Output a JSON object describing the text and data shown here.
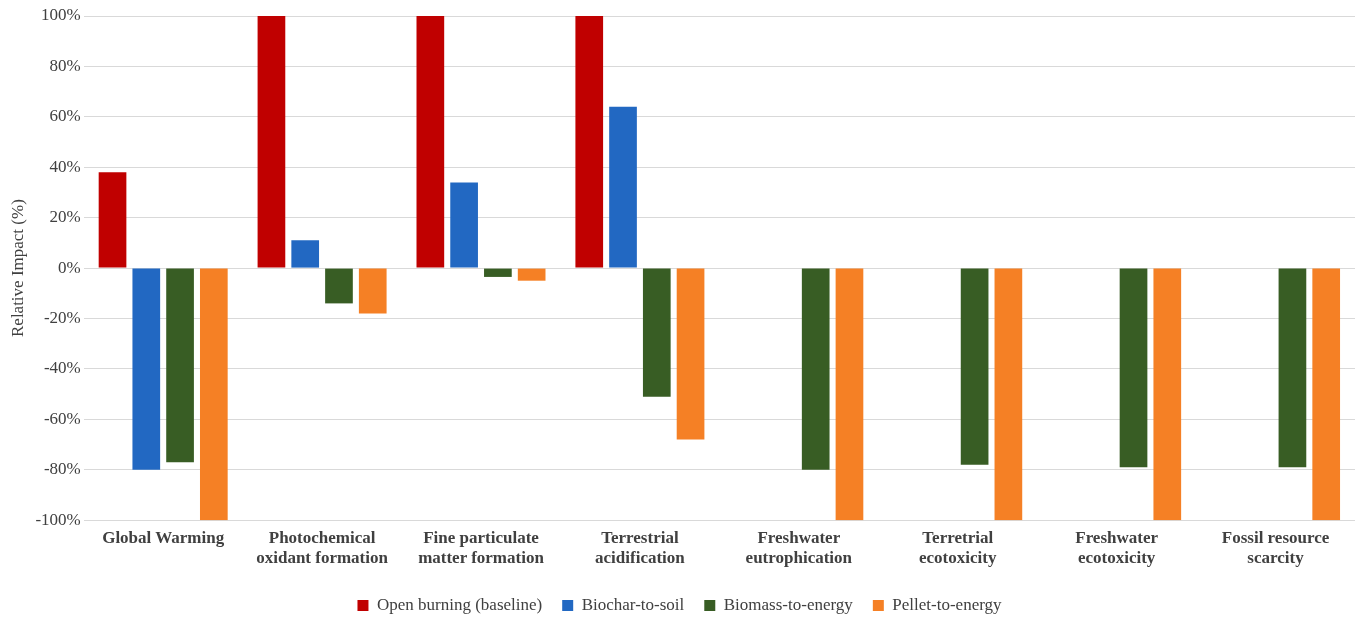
{
  "chart_data": {
    "type": "bar",
    "ylabel": "Relative Impact (%)",
    "categories": [
      "Global Warming",
      "Photochemical oxidant formation",
      "Fine particulate matter formation",
      "Terrestrial acidification",
      "Freshwater eutrophication",
      "Terretrial ecotoxicity",
      "Freshwater ecotoxicity",
      "Fossil resource scarcity"
    ],
    "series": [
      {
        "name": "Open burning (baseline)",
        "color": "#c00000",
        "values": [
          38,
          100,
          100,
          100,
          null,
          null,
          null,
          null
        ]
      },
      {
        "name": "Biochar-to-soil",
        "color": "#2268c2",
        "values": [
          -80,
          11,
          34,
          64,
          null,
          null,
          null,
          null
        ]
      },
      {
        "name": "Biomass-to-energy",
        "color": "#385d24",
        "values": [
          -77,
          -14,
          -3.5,
          -51,
          -80,
          -78,
          -79,
          -79
        ]
      },
      {
        "name": "Pellet-to-energy",
        "color": "#f58025",
        "values": [
          -100,
          -18,
          -5,
          -68,
          -100,
          -100,
          -100,
          -100
        ]
      }
    ],
    "ylim": [
      -100,
      100
    ],
    "yticks": [
      {
        "value": -100,
        "label": "-100%"
      },
      {
        "value": -80,
        "label": "-80%"
      },
      {
        "value": -60,
        "label": "-60%"
      },
      {
        "value": -40,
        "label": "-40%"
      },
      {
        "value": -20,
        "label": "-20%"
      },
      {
        "value": 0,
        "label": "0%"
      },
      {
        "value": 20,
        "label": "20%"
      },
      {
        "value": 40,
        "label": "40%"
      },
      {
        "value": 60,
        "label": "60%"
      },
      {
        "value": 80,
        "label": "80%"
      },
      {
        "value": 100,
        "label": "100%"
      }
    ],
    "grid": "y",
    "legend": "bottom"
  }
}
